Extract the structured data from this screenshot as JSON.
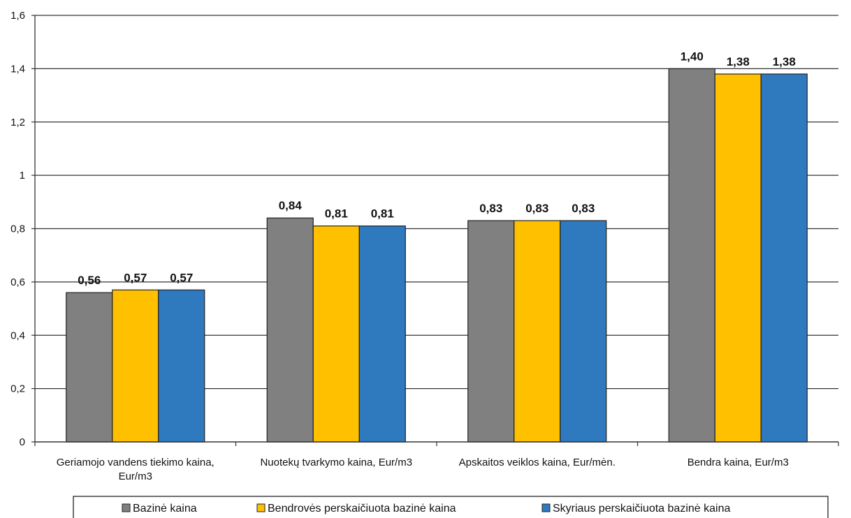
{
  "chart_data": {
    "type": "bar",
    "categories": [
      [
        "Geriamojo vandens tiekimo kaina,",
        "Eur/m3"
      ],
      [
        "Nuotekų tvarkymo kaina, Eur/m3"
      ],
      [
        "Apskaitos veiklos kaina, Eur/mėn."
      ],
      [
        "Bendra kaina, Eur/m3"
      ]
    ],
    "series": [
      {
        "name": "Bazinė kaina",
        "color": "#808080",
        "values": [
          0.56,
          0.84,
          0.83,
          1.4
        ],
        "labels": [
          "0,56",
          "0,84",
          "0,83",
          "1,40"
        ]
      },
      {
        "name": "Bendrovės perskaičiuota bazinė kaina",
        "color": "#FFC000",
        "values": [
          0.57,
          0.81,
          0.83,
          1.38
        ],
        "labels": [
          "0,57",
          "0,81",
          "0,83",
          "1,38"
        ]
      },
      {
        "name": "Skyriaus perskaičiuota bazinė kaina",
        "color": "#2F7ABF",
        "values": [
          0.57,
          0.81,
          0.83,
          1.38
        ],
        "labels": [
          "0,57",
          "0,81",
          "0,83",
          "1,38"
        ]
      }
    ],
    "ylim": [
      0,
      1.6
    ],
    "yticks": [
      0,
      0.2,
      0.4,
      0.6,
      0.8,
      1,
      1.2,
      1.4,
      1.6
    ],
    "ytick_labels": [
      "0",
      "0,2",
      "0,4",
      "0,6",
      "0,8",
      "1",
      "1,2",
      "1,4",
      "1,6"
    ],
    "grid": true,
    "legend_position": "bottom"
  }
}
